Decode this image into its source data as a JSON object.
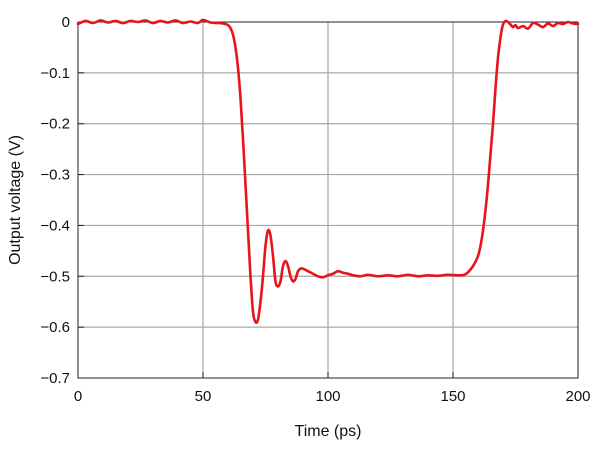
{
  "chart_data": {
    "type": "line",
    "title": "",
    "xlabel": "Time (ps)",
    "ylabel": "Output voltage (V)",
    "xlim": [
      0,
      200
    ],
    "ylim": [
      -0.7,
      0
    ],
    "x_ticks": [
      0,
      50,
      100,
      150,
      200
    ],
    "x_tick_labels": [
      "0",
      "50",
      "100",
      "150",
      "200"
    ],
    "y_ticks": [
      0,
      -0.1,
      -0.2,
      -0.3,
      -0.4,
      -0.5,
      -0.6,
      -0.7
    ],
    "y_tick_labels": [
      "0",
      "−0.1",
      "−0.2",
      "−0.3",
      "−0.4",
      "−0.5",
      "−0.6",
      "−0.7"
    ],
    "grid": true,
    "legend": "none",
    "line_color": "#e8141c",
    "series": [
      {
        "x": [
          0,
          3,
          6,
          9,
          12,
          15,
          18,
          21,
          24,
          27,
          30,
          33,
          36,
          39,
          42,
          45,
          48,
          50,
          53,
          56,
          58,
          60,
          61,
          62,
          63,
          64,
          65,
          66,
          67,
          68,
          69,
          70,
          71,
          72,
          73,
          74,
          75,
          76,
          77,
          78,
          79,
          80,
          81,
          82,
          83,
          84,
          85,
          86,
          87,
          88,
          89,
          90,
          92,
          94,
          96,
          98,
          100,
          102,
          104,
          106,
          108,
          110,
          113,
          116,
          120,
          124,
          128,
          132,
          136,
          140,
          144,
          148,
          152,
          155,
          158,
          160,
          161,
          162,
          163,
          164,
          165,
          166,
          167,
          168,
          169,
          170,
          171,
          172,
          173,
          174,
          175,
          176,
          178,
          180,
          182,
          184,
          186,
          188,
          190,
          192,
          194,
          196,
          198,
          200
        ],
        "y": [
          -0.004,
          0.002,
          -0.002,
          0.003,
          -0.001,
          0.002,
          -0.002,
          0.002,
          0.0,
          0.003,
          -0.002,
          0.002,
          -0.001,
          0.003,
          -0.002,
          0.001,
          -0.002,
          0.004,
          -0.001,
          -0.002,
          -0.003,
          -0.006,
          -0.012,
          -0.025,
          -0.05,
          -0.09,
          -0.15,
          -0.23,
          -0.32,
          -0.41,
          -0.5,
          -0.57,
          -0.59,
          -0.585,
          -0.55,
          -0.5,
          -0.44,
          -0.41,
          -0.42,
          -0.46,
          -0.51,
          -0.52,
          -0.51,
          -0.48,
          -0.47,
          -0.48,
          -0.5,
          -0.51,
          -0.505,
          -0.49,
          -0.485,
          -0.485,
          -0.49,
          -0.495,
          -0.5,
          -0.502,
          -0.498,
          -0.495,
          -0.49,
          -0.493,
          -0.495,
          -0.498,
          -0.5,
          -0.497,
          -0.5,
          -0.498,
          -0.5,
          -0.497,
          -0.5,
          -0.498,
          -0.499,
          -0.497,
          -0.498,
          -0.496,
          -0.48,
          -0.46,
          -0.44,
          -0.41,
          -0.37,
          -0.32,
          -0.26,
          -0.2,
          -0.13,
          -0.07,
          -0.03,
          -0.005,
          0.002,
          0.0,
          -0.005,
          -0.01,
          -0.006,
          -0.012,
          -0.008,
          -0.013,
          -0.002,
          -0.005,
          -0.01,
          -0.003,
          -0.008,
          -0.002,
          -0.004,
          0.0,
          -0.003,
          -0.004
        ]
      }
    ]
  }
}
